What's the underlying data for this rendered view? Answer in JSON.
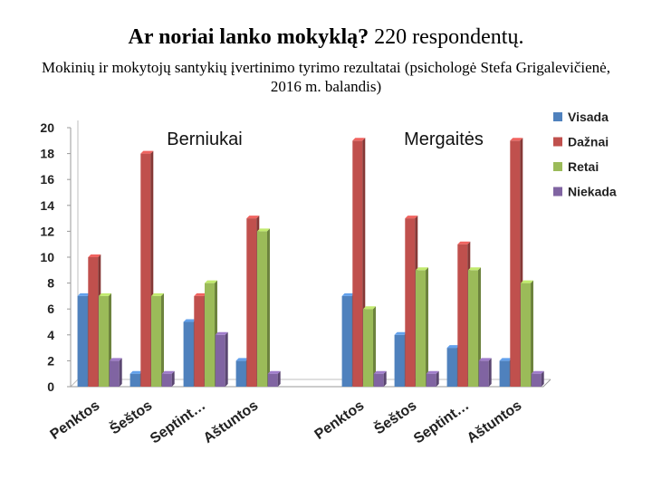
{
  "title_main": "Ar noriai lanko mokyklą?",
  "title_rest": " 220 respondentų.",
  "subtitle": "Mokinių ir mokytojų santykių įvertinimo tyrimo rezultatai (psichologė Stefa Grigalevičienė, 2016 m. balandis)",
  "chart_data": {
    "type": "bar",
    "groups": [
      "Berniukai",
      "Mergaitės"
    ],
    "categories": [
      "Penktos",
      "Šeštos",
      "Septint…",
      "Aštuntos",
      "Penktos",
      "Šeštos",
      "Septint…",
      "Aštuntos"
    ],
    "series": [
      {
        "name": "Visada",
        "color": "#4f81bd",
        "values": [
          7,
          1,
          5,
          2,
          7,
          4,
          3,
          2
        ]
      },
      {
        "name": "Dažnai",
        "color": "#c0504d",
        "values": [
          10,
          18,
          7,
          13,
          19,
          13,
          11,
          19
        ]
      },
      {
        "name": "Retai",
        "color": "#9bbb59",
        "values": [
          7,
          7,
          8,
          12,
          6,
          9,
          9,
          8
        ]
      },
      {
        "name": "Niekada",
        "color": "#8064a2",
        "values": [
          2,
          1,
          4,
          1,
          1,
          1,
          2,
          1
        ]
      }
    ],
    "ylim": [
      0,
      20
    ],
    "yticks": [
      0,
      2,
      4,
      6,
      8,
      10,
      12,
      14,
      16,
      18,
      20
    ],
    "legend_position": "top-right",
    "grid": false
  }
}
